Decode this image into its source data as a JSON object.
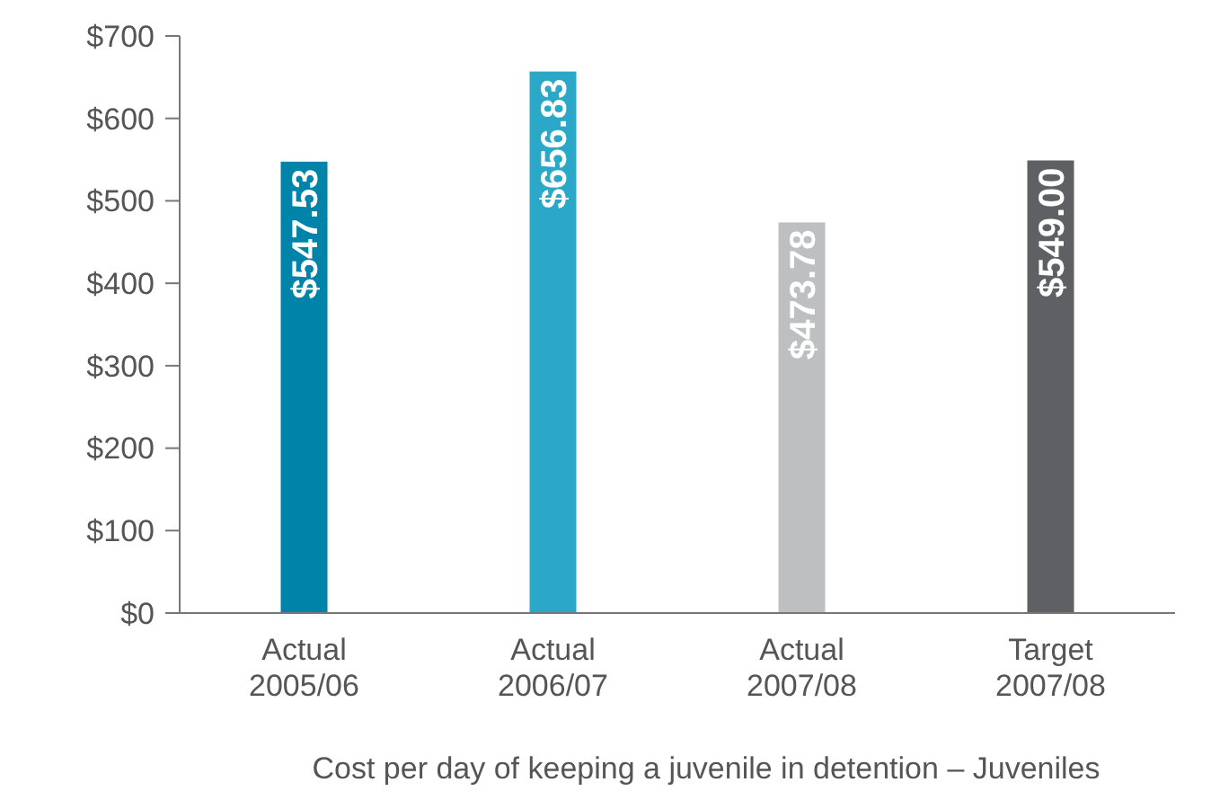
{
  "chart_data": {
    "type": "bar",
    "xlabel": "Cost per day of keeping a juvenile in detention – Juveniles",
    "categories": [
      "Actual 2005/06",
      "Actual 2006/07",
      "Actual 2007/08",
      "Target 2007/08"
    ],
    "values": [
      547.53,
      656.83,
      473.78,
      549.0
    ],
    "colors": [
      "#0083a9",
      "#2ba8c8",
      "#bebfc1",
      "#5f6064"
    ],
    "value_labels": [
      "$547.53",
      "$656.83",
      "$473.78",
      "$549.00"
    ],
    "ylim": [
      0,
      700
    ],
    "yticks": [
      {
        "value": 0,
        "label": "$0"
      },
      {
        "value": 100,
        "label": "$100"
      },
      {
        "value": 200,
        "label": "$200"
      },
      {
        "value": 300,
        "label": "$300"
      },
      {
        "value": 400,
        "label": "$400"
      },
      {
        "value": 500,
        "label": "$500"
      },
      {
        "value": 600,
        "label": "$600"
      },
      {
        "value": 700,
        "label": "$700"
      }
    ]
  }
}
